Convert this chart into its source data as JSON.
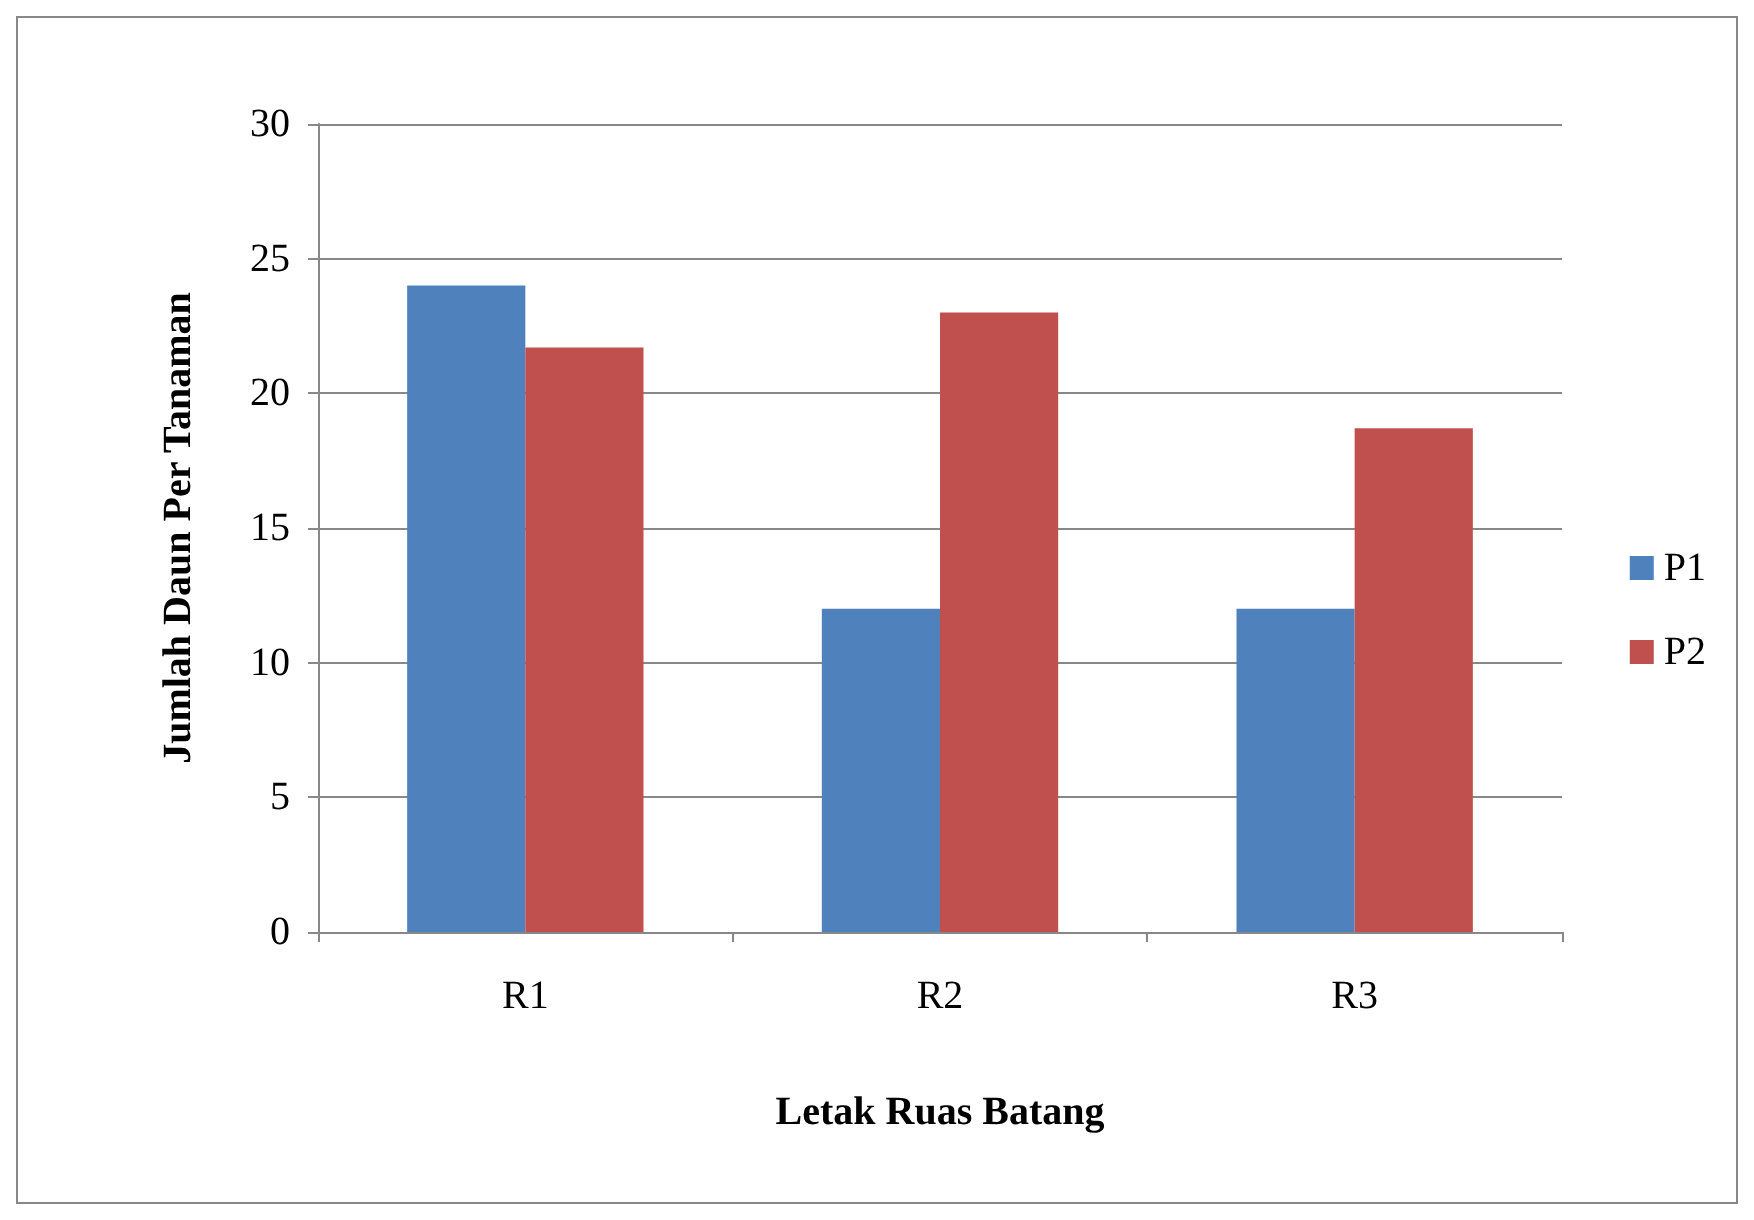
{
  "chart_data": {
    "type": "bar",
    "xlabel": "Letak Ruas Batang",
    "ylabel": "Jumlah Daun Per Tanaman",
    "categories": [
      "R1",
      "R2",
      "R3"
    ],
    "series": [
      {
        "name": "P1",
        "color": "#4f81bd",
        "values": [
          24,
          12,
          12
        ]
      },
      {
        "name": "P2",
        "color": "#c0504d",
        "values": [
          21.7,
          23,
          18.7
        ]
      }
    ],
    "ylim": [
      0,
      30
    ],
    "yticks": [
      0,
      5,
      10,
      15,
      20,
      25,
      30
    ],
    "grid": "y",
    "legend": "right"
  }
}
